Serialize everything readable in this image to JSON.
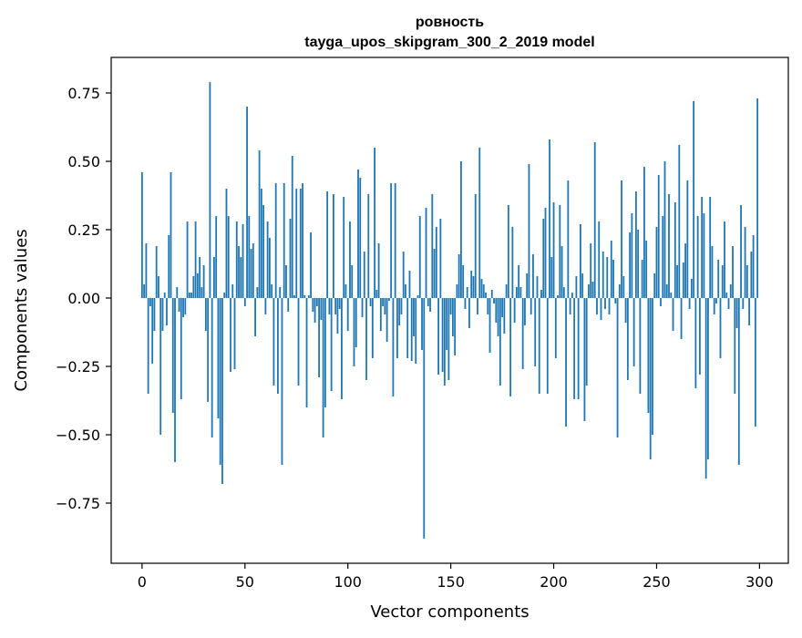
{
  "chart_data": {
    "type": "bar",
    "title": "ровность",
    "subtitle": "tayga_upos_skipgram_300_2_2019 model",
    "xlabel": "Vector components",
    "ylabel": "Components values",
    "xlim": [
      -15,
      314
    ],
    "ylim": [
      -0.97,
      0.88
    ],
    "xticks": [
      0,
      50,
      100,
      150,
      200,
      250,
      300
    ],
    "yticks": [
      -0.75,
      -0.5,
      -0.25,
      0.0,
      0.25,
      0.5,
      0.75
    ],
    "ytick_labels": [
      "−0.75",
      "−0.50",
      "−0.25",
      "0.00",
      "0.25",
      "0.50",
      "0.75"
    ],
    "grid": false,
    "bar_color": "#1f77b4",
    "x": [
      0,
      1,
      2,
      3,
      4,
      5,
      6,
      7,
      8,
      9,
      10,
      11,
      12,
      13,
      14,
      15,
      16,
      17,
      18,
      19,
      20,
      21,
      22,
      23,
      24,
      25,
      26,
      27,
      28,
      29,
      30,
      31,
      32,
      33,
      34,
      35,
      36,
      37,
      38,
      39,
      40,
      41,
      42,
      43,
      44,
      45,
      46,
      47,
      48,
      49,
      50,
      51,
      52,
      53,
      54,
      55,
      56,
      57,
      58,
      59,
      60,
      61,
      62,
      63,
      64,
      65,
      66,
      67,
      68,
      69,
      70,
      71,
      72,
      73,
      74,
      75,
      76,
      77,
      78,
      79,
      80,
      81,
      82,
      83,
      84,
      85,
      86,
      87,
      88,
      89,
      90,
      91,
      92,
      93,
      94,
      95,
      96,
      97,
      98,
      99,
      100,
      101,
      102,
      103,
      104,
      105,
      106,
      107,
      108,
      109,
      110,
      111,
      112,
      113,
      114,
      115,
      116,
      117,
      118,
      119,
      120,
      121,
      122,
      123,
      124,
      125,
      126,
      127,
      128,
      129,
      130,
      131,
      132,
      133,
      134,
      135,
      136,
      137,
      138,
      139,
      140,
      141,
      142,
      143,
      144,
      145,
      146,
      147,
      148,
      149,
      150,
      151,
      152,
      153,
      154,
      155,
      156,
      157,
      158,
      159,
      160,
      161,
      162,
      163,
      164,
      165,
      166,
      167,
      168,
      169,
      170,
      171,
      172,
      173,
      174,
      175,
      176,
      177,
      178,
      179,
      180,
      181,
      182,
      183,
      184,
      185,
      186,
      187,
      188,
      189,
      190,
      191,
      192,
      193,
      194,
      195,
      196,
      197,
      198,
      199,
      200,
      201,
      202,
      203,
      204,
      205,
      206,
      207,
      208,
      209,
      210,
      211,
      212,
      213,
      214,
      215,
      216,
      217,
      218,
      219,
      220,
      221,
      222,
      223,
      224,
      225,
      226,
      227,
      228,
      229,
      230,
      231,
      232,
      233,
      234,
      235,
      236,
      237,
      238,
      239,
      240,
      241,
      242,
      243,
      244,
      245,
      246,
      247,
      248,
      249,
      250,
      251,
      252,
      253,
      254,
      255,
      256,
      257,
      258,
      259,
      260,
      261,
      262,
      263,
      264,
      265,
      266,
      267,
      268,
      269,
      270,
      271,
      272,
      273,
      274,
      275,
      276,
      277,
      278,
      279,
      280,
      281,
      282,
      283,
      284,
      285,
      286,
      287,
      288,
      289,
      290,
      291,
      292,
      293,
      294,
      295,
      296,
      297,
      298,
      299
    ],
    "values": [
      0.46,
      0.05,
      0.2,
      -0.35,
      -0.03,
      -0.24,
      -0.12,
      0.19,
      0.08,
      -0.5,
      -0.12,
      0.02,
      -0.1,
      0.23,
      0.46,
      -0.42,
      -0.6,
      0.04,
      -0.05,
      -0.37,
      -0.07,
      -0.06,
      0.28,
      0.02,
      0.02,
      0.08,
      0.28,
      0.09,
      0.15,
      0.04,
      0.12,
      -0.12,
      -0.38,
      0.79,
      -0.51,
      0.15,
      0.3,
      -0.44,
      -0.61,
      -0.68,
      0.02,
      0.4,
      0.3,
      -0.27,
      0.05,
      -0.26,
      0.28,
      0.19,
      0.15,
      0.27,
      -0.03,
      0.7,
      0.3,
      0.18,
      0.2,
      -0.14,
      0.04,
      0.54,
      0.4,
      0.34,
      -0.06,
      0.28,
      0.22,
      0.05,
      -0.32,
      0.42,
      -0.35,
      0.04,
      -0.61,
      0.42,
      0.12,
      -0.05,
      0.29,
      0.52,
      0.01,
      0.4,
      -0.32,
      0.4,
      0.42,
      0.01,
      -0.4,
      0.01,
      0.24,
      -0.05,
      -0.09,
      -0.03,
      -0.29,
      -0.08,
      -0.51,
      -0.4,
      0.39,
      -0.06,
      -0.34,
      0.38,
      -0.06,
      -0.13,
      -0.04,
      -0.37,
      0.37,
      0.05,
      -0.12,
      0.28,
      0.12,
      -0.25,
      -0.18,
      0.47,
      0.44,
      -0.07,
      0.17,
      -0.3,
      0.38,
      -0.03,
      -0.22,
      0.55,
      0.03,
      0.2,
      -0.12,
      -0.03,
      -0.06,
      -0.16,
      -0.01,
      0.42,
      -0.36,
      0.42,
      -0.22,
      -0.1,
      -0.06,
      0.17,
      0.05,
      -0.22,
      0.1,
      -0.23,
      -0.14,
      -0.24,
      0.01,
      0.3,
      -0.19,
      -0.88,
      0.33,
      -0.03,
      -0.05,
      0.38,
      0.18,
      0.26,
      -0.28,
      0.29,
      -0.27,
      -0.32,
      -0.19,
      -0.3,
      -0.06,
      -0.14,
      -0.21,
      0.05,
      0.16,
      0.5,
      0.12,
      -0.04,
      0.04,
      -0.11,
      0.1,
      0.08,
      0.38,
      -0.06,
      0.55,
      0.07,
      0.05,
      0.02,
      -0.06,
      -0.2,
      0.03,
      -0.02,
      -0.09,
      -0.14,
      -0.32,
      -0.07,
      -0.13,
      0.05,
      0.34,
      -0.36,
      0.26,
      -0.09,
      0.04,
      0.12,
      0.04,
      -0.26,
      -0.1,
      0.09,
      0.49,
      -0.06,
      0.16,
      -0.25,
      0.08,
      -0.35,
      0.03,
      0.29,
      0.33,
      -0.35,
      0.58,
      0.15,
      0.35,
      -0.22,
      0.01,
      0.34,
      0.19,
      0.04,
      -0.47,
      0.43,
      -0.06,
      0.02,
      -0.37,
      0.08,
      -0.37,
      0.27,
      0.09,
      -0.45,
      -0.32,
      0.05,
      0.2,
      0.06,
      0.57,
      -0.06,
      0.28,
      -0.08,
      0.17,
      -0.04,
      0.15,
      -0.06,
      0.21,
      0.14,
      -0.02,
      -0.51,
      0.05,
      0.43,
      0.08,
      -0.09,
      -0.3,
      0.24,
      0.31,
      -0.25,
      0.39,
      0.25,
      -0.35,
      0.14,
      0.48,
      0.21,
      -0.42,
      -0.59,
      -0.5,
      0.09,
      0.26,
      0.45,
      -0.03,
      0.3,
      0.5,
      0.05,
      0.38,
      0.02,
      -0.12,
      0.35,
      0.12,
      0.56,
      -0.15,
      0.13,
      0.2,
      0.43,
      -0.04,
      0.07,
      0.72,
      -0.33,
      0.3,
      -0.28,
      0.37,
      0.31,
      -0.66,
      -0.59,
      0.37,
      0.19,
      -0.06,
      -0.02,
      0.14,
      -0.22,
      0.12,
      0.28,
      0.02,
      -0.04,
      0.05,
      0.19,
      -0.35,
      -0.11,
      -0.61,
      0.34,
      -0.04,
      0.26,
      0.12,
      -0.1,
      0.17,
      0.23,
      -0.47,
      0.73
    ]
  }
}
